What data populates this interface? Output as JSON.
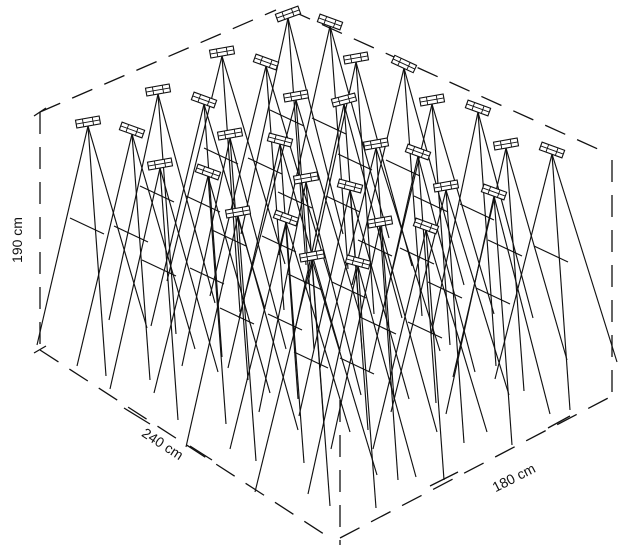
{
  "dimensions": {
    "height_label": "190 cm",
    "length_label": "240 cm",
    "depth_label": "180 cm"
  },
  "installation": {
    "legs_per_stand": 3
  },
  "colors": {
    "ink": "#111111",
    "background": "#ffffff"
  }
}
